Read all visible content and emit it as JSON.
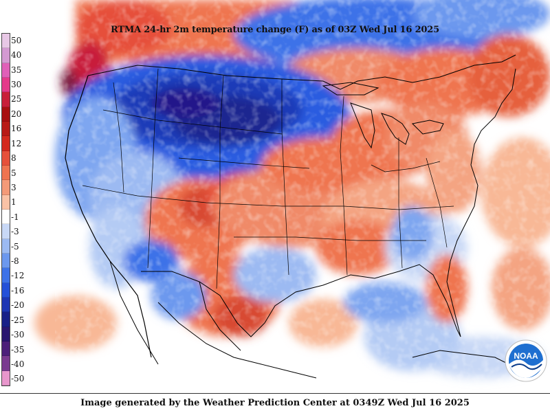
{
  "title": "RTMA 24-hr 2m temperature change (F) as of 03Z Wed Jul 16 2025",
  "footer": "Image generated by the Weather Prediction Center at 0349Z Wed Jul 16 2025",
  "logo_text": "NOAA",
  "legend": {
    "labels": [
      "50",
      "40",
      "35",
      "30",
      "25",
      "20",
      "16",
      "12",
      "8",
      "5",
      "3",
      "1",
      "-1",
      "-3",
      "-5",
      "-8",
      "-12",
      "-16",
      "-20",
      "-25",
      "-30",
      "-35",
      "-40",
      "-50"
    ],
    "colors": [
      "#e8c8e6",
      "#d49ad2",
      "#e060b8",
      "#e43a8a",
      "#c81f3a",
      "#a80f10",
      "#b81a16",
      "#d42a1e",
      "#e6503a",
      "#ef7450",
      "#f49a78",
      "#fac2a6",
      "#ffffff",
      "#c8d8f6",
      "#9cbaf2",
      "#6c98ee",
      "#3e72e8",
      "#2450d8",
      "#1e36b4",
      "#182088",
      "#2a1670",
      "#4c1f7a",
      "#7a3a90",
      "#e896cc"
    ]
  }
}
